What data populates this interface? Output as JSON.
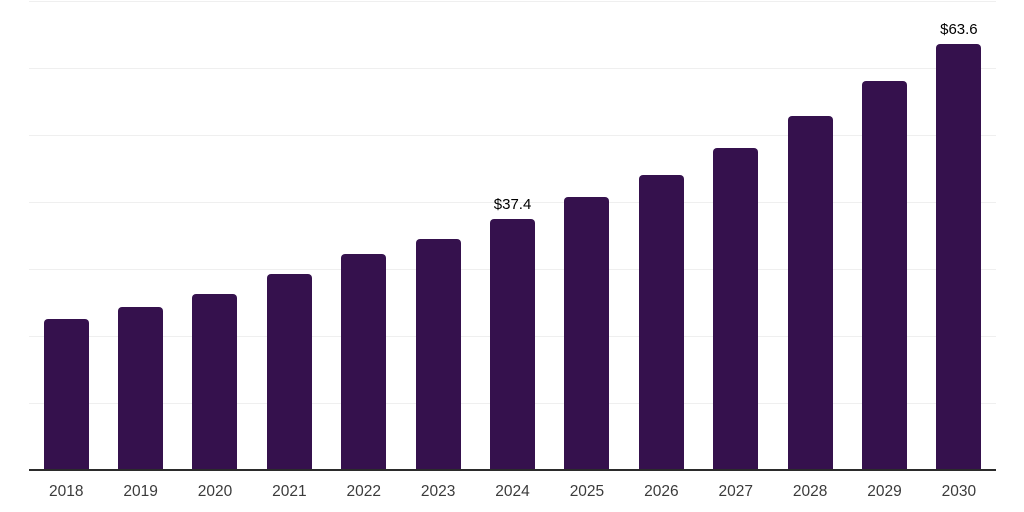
{
  "chart_data": {
    "type": "bar",
    "title": "",
    "xlabel": "",
    "ylabel": "",
    "categories": [
      "2018",
      "2019",
      "2020",
      "2021",
      "2022",
      "2023",
      "2024",
      "2025",
      "2026",
      "2027",
      "2028",
      "2029",
      "2030"
    ],
    "values": [
      22.5,
      24.4,
      26.2,
      29.2,
      32.2,
      34.5,
      37.4,
      40.7,
      44.1,
      48.1,
      52.8,
      58.0,
      63.6
    ],
    "data_labels": [
      "",
      "",
      "",
      "",
      "",
      "",
      "$37.4",
      "",
      "",
      "",
      "",
      "",
      "$63.6"
    ],
    "ylim": [
      0,
      70
    ],
    "grid_interval": 10,
    "grid_visible": true,
    "y_tick_labels_visible": false,
    "legend_position": "none",
    "colors": {
      "bar": "#35114D",
      "gridline": "#efefef",
      "axis_line": "#2b2b2b",
      "tick_label": "#3b3b3b",
      "value_label": "#000000",
      "background": "#ffffff"
    }
  }
}
